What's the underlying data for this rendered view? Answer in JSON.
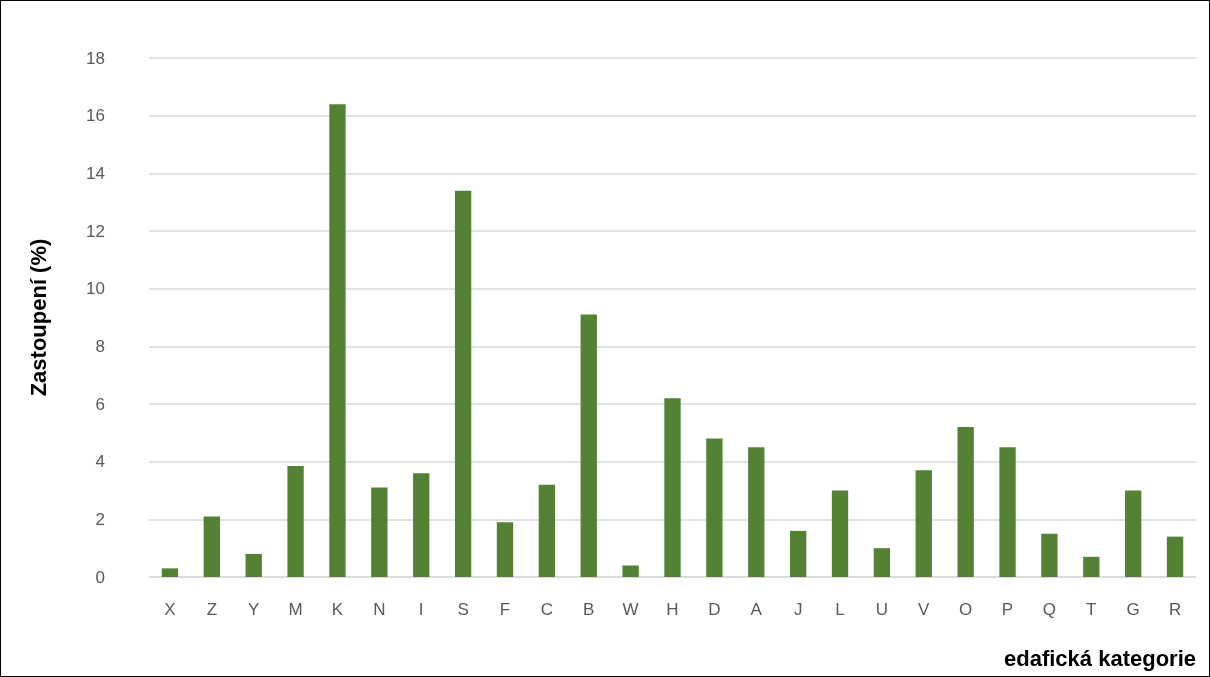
{
  "chart_data": {
    "type": "bar",
    "xlabel": "edafická kategorie",
    "ylabel": "Zastoupení (%)",
    "categories": [
      "X",
      "Z",
      "Y",
      "M",
      "K",
      "N",
      "I",
      "S",
      "F",
      "C",
      "B",
      "W",
      "H",
      "D",
      "A",
      "J",
      "L",
      "U",
      "V",
      "O",
      "P",
      "Q",
      "T",
      "G",
      "R"
    ],
    "values": [
      0.3,
      2.1,
      0.8,
      3.85,
      16.4,
      3.1,
      3.6,
      13.4,
      1.9,
      3.2,
      9.1,
      0.4,
      6.2,
      4.8,
      4.5,
      1.6,
      3.0,
      1.0,
      3.7,
      5.2,
      4.5,
      1.5,
      0.7,
      3.0,
      1.4
    ],
    "color": "#548235",
    "ylim": [
      0,
      18
    ],
    "yticks": [
      0,
      2,
      4,
      6,
      8,
      10,
      12,
      14,
      16,
      18
    ],
    "grid": "y"
  }
}
